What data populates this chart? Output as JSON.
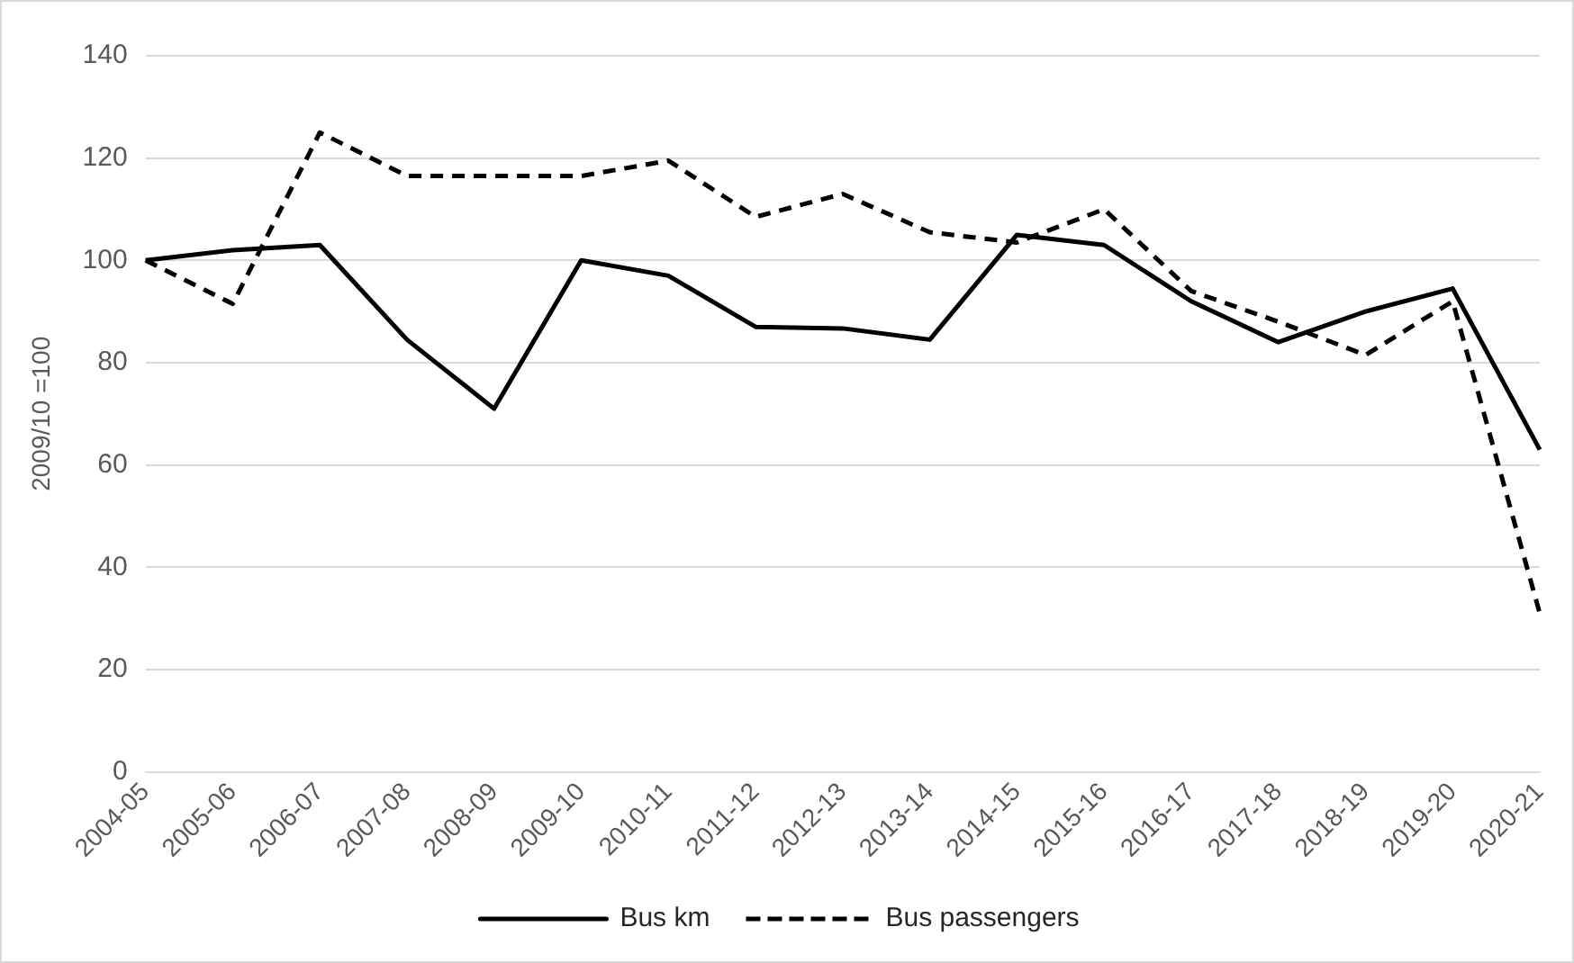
{
  "chart_data": {
    "type": "line",
    "ylabel": "2009/10 =100",
    "categories": [
      "2004-05",
      "2005-06",
      "2006-07",
      "2007-08",
      "2008-09",
      "2009-10",
      "2010-11",
      "2011-12",
      "2012-13",
      "2013-14",
      "2014-15",
      "2015-16",
      "2016-17",
      "2017-18",
      "2018-19",
      "2019-20",
      "2020-21"
    ],
    "series": [
      {
        "name": "Bus km",
        "color": "#000000",
        "line_style": "solid",
        "values": [
          100,
          102,
          103,
          84.5,
          71,
          100,
          97,
          87,
          86.7,
          84.5,
          105,
          103,
          92,
          84,
          90,
          94.5,
          63
        ]
      },
      {
        "name": "Bus passengers",
        "color": "#000000",
        "line_style": "dashed",
        "values": [
          100,
          91.5,
          125,
          116.5,
          116.5,
          116.5,
          119.5,
          108.5,
          113,
          105.5,
          103.5,
          110,
          94,
          88,
          81.5,
          92,
          31
        ]
      }
    ],
    "ylim": [
      0,
      140
    ],
    "yticks": [
      0,
      20,
      40,
      60,
      80,
      100,
      120,
      140
    ],
    "grid": "y",
    "legend": "bottom",
    "marker": "none"
  }
}
